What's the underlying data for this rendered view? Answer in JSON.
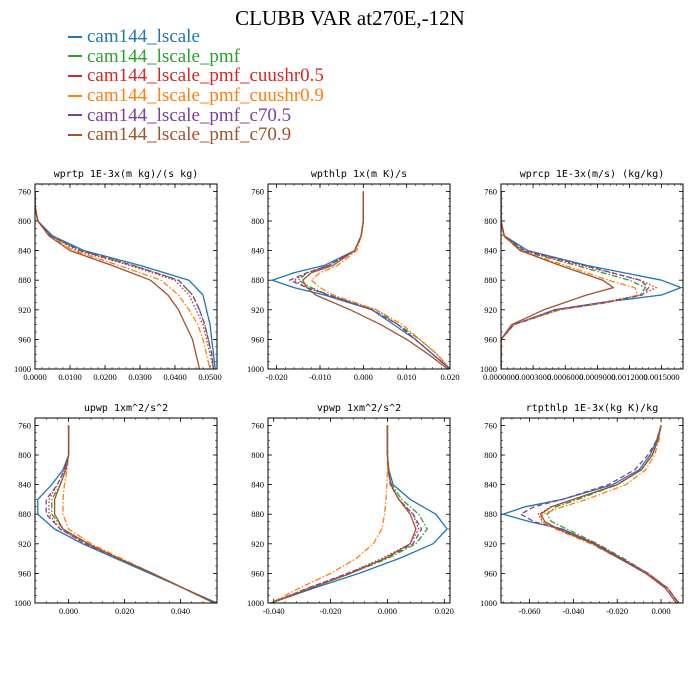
{
  "title": "CLUBB VAR at270E,-12N",
  "legend": [
    {
      "label": "cam144_lscale",
      "color": "#1f77b4"
    },
    {
      "label": "cam144_lscale_pmf",
      "color": "#2ca02c"
    },
    {
      "label": "cam144_lscale_pmf_cuushr0.5",
      "color": "#d62728"
    },
    {
      "label": "cam144_lscale_pmf_cuushr0.9",
      "color": "#ff7f0e"
    },
    {
      "label": "cam144_lscale_pmf_c70.5",
      "color": "#7b3fa0"
    },
    {
      "label": "cam144_lscale_pmf_c70.9",
      "color": "#a0522d"
    }
  ],
  "chart_data": [
    {
      "type": "line",
      "title": "wprtp  1E-3x(m kg)/(s kg)",
      "xlim": [
        0.0,
        0.052
      ],
      "ylim": [
        1000,
        750
      ],
      "yticks": [
        760,
        800,
        840,
        880,
        920,
        960,
        1000
      ],
      "xticks": [
        0.0,
        0.01,
        0.02,
        0.03,
        0.04,
        0.05
      ],
      "xticklabels": [
        "0.0000",
        "0.0100",
        "0.0200",
        "0.0300",
        "0.0400",
        "0.0500"
      ],
      "y": [
        760,
        780,
        800,
        820,
        840,
        860,
        880,
        900,
        920,
        940,
        960,
        980,
        1000
      ],
      "series": [
        {
          "name": "cam144_lscale",
          "style": "solid",
          "values": [
            0.0,
            0.0,
            0.0008,
            0.005,
            0.014,
            0.03,
            0.044,
            0.048,
            0.049,
            0.05,
            0.0505,
            0.051,
            0.0515
          ]
        },
        {
          "name": "cam144_lscale_pmf",
          "style": "dashdot",
          "values": [
            0.0,
            0.0,
            0.0008,
            0.0045,
            0.013,
            0.028,
            0.041,
            0.045,
            0.047,
            0.0485,
            0.0495,
            0.0505,
            0.051
          ]
        },
        {
          "name": "cam144_lscale_pmf_cuushr0.5",
          "style": "dotted",
          "values": [
            0.0,
            0.0,
            0.0008,
            0.0045,
            0.012,
            0.027,
            0.04,
            0.044,
            0.046,
            0.048,
            0.049,
            0.05,
            0.051
          ]
        },
        {
          "name": "cam144_lscale_pmf_cuushr0.9",
          "style": "dashdot",
          "values": [
            0.0,
            0.0,
            0.0008,
            0.004,
            0.011,
            0.024,
            0.036,
            0.041,
            0.044,
            0.0465,
            0.048,
            0.049,
            0.05
          ]
        },
        {
          "name": "cam144_lscale_pmf_c70.5",
          "style": "dashed",
          "values": [
            0.0,
            0.0,
            0.0008,
            0.0045,
            0.013,
            0.028,
            0.041,
            0.045,
            0.047,
            0.0485,
            0.0495,
            0.0505,
            0.051
          ]
        },
        {
          "name": "cam144_lscale_pmf_c70.9",
          "style": "solid",
          "values": [
            0.0,
            0.0,
            0.0008,
            0.004,
            0.01,
            0.022,
            0.033,
            0.038,
            0.041,
            0.043,
            0.045,
            0.046,
            0.047
          ]
        }
      ]
    },
    {
      "type": "line",
      "title": "wpthlp  1x(m K)/s",
      "xlim": [
        -0.022,
        0.02
      ],
      "ylim": [
        1000,
        750
      ],
      "yticks": [
        760,
        800,
        840,
        880,
        920,
        960,
        1000
      ],
      "xticks": [
        -0.02,
        -0.01,
        0.0,
        0.01,
        0.02
      ],
      "xticklabels": [
        "-0.020",
        "-0.010",
        "0.000",
        "0.010",
        "0.020"
      ],
      "y": [
        760,
        780,
        800,
        820,
        840,
        860,
        870,
        880,
        890,
        900,
        920,
        940,
        960,
        980,
        1000
      ],
      "series": [
        {
          "name": "cam144_lscale",
          "style": "solid",
          "values": [
            0.0,
            0.0,
            0.0,
            -0.0005,
            -0.002,
            -0.009,
            -0.016,
            -0.021,
            -0.016,
            -0.009,
            0.002,
            0.007,
            0.012,
            0.016,
            0.02
          ]
        },
        {
          "name": "cam144_lscale_pmf",
          "style": "dashdot",
          "values": [
            0.0,
            0.0,
            0.0,
            -0.0005,
            -0.002,
            -0.008,
            -0.013,
            -0.015,
            -0.012,
            -0.008,
            0.003,
            0.008,
            0.013,
            0.017,
            0.02
          ]
        },
        {
          "name": "cam144_lscale_pmf_cuushr0.5",
          "style": "dotted",
          "values": [
            0.0,
            0.0,
            0.0,
            -0.0005,
            -0.002,
            -0.008,
            -0.013,
            -0.016,
            -0.013,
            -0.008,
            0.002,
            0.008,
            0.012,
            0.016,
            0.02
          ]
        },
        {
          "name": "cam144_lscale_pmf_cuushr0.9",
          "style": "dashdot",
          "values": [
            0.0,
            0.0,
            0.0,
            -0.0005,
            -0.0015,
            -0.006,
            -0.01,
            -0.012,
            -0.01,
            -0.007,
            0.003,
            0.009,
            0.013,
            0.017,
            0.02
          ]
        },
        {
          "name": "cam144_lscale_pmf_c70.5",
          "style": "dashed",
          "values": [
            0.0,
            0.0,
            0.0,
            -0.0005,
            -0.002,
            -0.008,
            -0.013,
            -0.017,
            -0.013,
            -0.008,
            0.002,
            0.008,
            0.012,
            0.016,
            0.02
          ]
        },
        {
          "name": "cam144_lscale_pmf_c70.9",
          "style": "solid",
          "values": [
            0.0,
            0.0,
            0.0,
            -0.0005,
            -0.002,
            -0.007,
            -0.012,
            -0.014,
            -0.013,
            -0.011,
            -0.003,
            0.004,
            0.01,
            0.015,
            0.0195
          ]
        }
      ]
    },
    {
      "type": "line",
      "title": "wprcp  1E-3x(m/s) (kg/kg)",
      "xlim": [
        0.0,
        0.0017
      ],
      "ylim": [
        1000,
        750
      ],
      "yticks": [
        760,
        800,
        840,
        880,
        920,
        960,
        1000
      ],
      "xticks": [
        0.0,
        0.0003,
        0.0006,
        0.0009,
        0.0012,
        0.0015
      ],
      "xticklabels": [
        "0.0000000",
        "0.0003000",
        "0.0006000",
        "0.0009000",
        "0.0012000",
        "0.0015000"
      ],
      "y": [
        760,
        780,
        800,
        820,
        840,
        860,
        880,
        890,
        900,
        910,
        920,
        940,
        960,
        980,
        1000
      ],
      "series": [
        {
          "name": "cam144_lscale",
          "style": "solid",
          "values": [
            0.0,
            0.0,
            0.0,
            3e-05,
            0.00025,
            0.0008,
            0.0015,
            0.00168,
            0.0015,
            0.00095,
            0.0005,
            0.00012,
            0.0,
            0.0,
            0.0
          ]
        },
        {
          "name": "cam144_lscale_pmf",
          "style": "dashdot",
          "values": [
            0.0,
            0.0,
            0.0,
            3e-05,
            0.0002,
            0.0007,
            0.0012,
            0.00135,
            0.0013,
            0.001,
            0.00055,
            0.00012,
            0.0,
            0.0,
            0.0
          ]
        },
        {
          "name": "cam144_lscale_pmf_cuushr0.5",
          "style": "dotted",
          "values": [
            0.0,
            0.0,
            0.0,
            3e-05,
            0.0002,
            0.00075,
            0.0013,
            0.00145,
            0.0013,
            0.00095,
            0.0005,
            0.00012,
            0.0,
            0.0,
            0.0
          ]
        },
        {
          "name": "cam144_lscale_pmf_cuushr0.9",
          "style": "dashdot",
          "values": [
            0.0,
            0.0,
            0.0,
            2e-05,
            0.00018,
            0.0006,
            0.001,
            0.00125,
            0.00128,
            0.001,
            0.00055,
            0.00012,
            0.0,
            0.0,
            0.0
          ]
        },
        {
          "name": "cam144_lscale_pmf_c70.5",
          "style": "dashed",
          "values": [
            0.0,
            0.0,
            0.0,
            3e-05,
            0.00022,
            0.00078,
            0.0013,
            0.00138,
            0.00132,
            0.00098,
            0.00052,
            0.00012,
            0.0,
            0.0,
            0.0
          ]
        },
        {
          "name": "cam144_lscale_pmf_c70.9",
          "style": "solid",
          "values": [
            0.0,
            0.0,
            0.0,
            3e-05,
            0.00018,
            0.00055,
            0.00095,
            0.00105,
            0.0008,
            0.0006,
            0.0004,
            0.0001,
            0.0,
            0.0,
            0.0
          ]
        }
      ]
    },
    {
      "type": "line",
      "title": "upwp  1xm^2/s^2",
      "xlim": [
        -0.012,
        0.053
      ],
      "ylim": [
        1000,
        750
      ],
      "yticks": [
        760,
        800,
        840,
        880,
        920,
        960,
        1000
      ],
      "xticks": [
        0.0,
        0.02,
        0.04
      ],
      "xticklabels": [
        "0.000",
        "0.020",
        "0.040"
      ],
      "y": [
        760,
        780,
        800,
        820,
        840,
        860,
        880,
        900,
        920,
        940,
        960,
        980,
        1000
      ],
      "series": [
        {
          "name": "cam144_lscale",
          "style": "solid",
          "values": [
            0.0,
            0.0,
            0.0,
            -0.002,
            -0.006,
            -0.011,
            -0.011,
            -0.005,
            0.005,
            0.017,
            0.029,
            0.041,
            0.053
          ]
        },
        {
          "name": "cam144_lscale_pmf",
          "style": "dashdot",
          "values": [
            0.0,
            0.0,
            0.0,
            -0.001,
            -0.003,
            -0.006,
            -0.006,
            -0.002,
            0.007,
            0.018,
            0.03,
            0.041,
            0.052
          ]
        },
        {
          "name": "cam144_lscale_pmf_cuushr0.5",
          "style": "dotted",
          "values": [
            0.0,
            0.0,
            0.0,
            -0.0015,
            -0.004,
            -0.007,
            -0.007,
            -0.003,
            0.006,
            0.018,
            0.03,
            0.041,
            0.052
          ]
        },
        {
          "name": "cam144_lscale_pmf_cuushr0.9",
          "style": "dashdot",
          "values": [
            0.0,
            0.0,
            0.0,
            -0.0005,
            -0.0015,
            -0.002,
            -0.002,
            0.0,
            0.008,
            0.019,
            0.03,
            0.041,
            0.052
          ]
        },
        {
          "name": "cam144_lscale_pmf_c70.5",
          "style": "dashed",
          "values": [
            0.0,
            0.0,
            0.0,
            -0.0015,
            -0.004,
            -0.008,
            -0.008,
            -0.003,
            0.006,
            0.018,
            0.03,
            0.041,
            0.052
          ]
        },
        {
          "name": "cam144_lscale_pmf_c70.9",
          "style": "solid",
          "values": [
            0.0,
            0.0,
            0.0,
            -0.001,
            -0.003,
            -0.005,
            -0.005,
            -0.002,
            0.007,
            0.018,
            0.03,
            0.041,
            0.052
          ]
        }
      ]
    },
    {
      "type": "line",
      "title": "vpwp  1xm^2/s^2",
      "xlim": [
        -0.042,
        0.022
      ],
      "ylim": [
        1000,
        750
      ],
      "yticks": [
        760,
        800,
        840,
        880,
        920,
        960,
        1000
      ],
      "xticks": [
        -0.04,
        -0.02,
        0.0,
        0.02
      ],
      "xticklabels": [
        "-0.040",
        "-0.020",
        "0.000",
        "0.020"
      ],
      "y": [
        760,
        780,
        800,
        820,
        840,
        860,
        880,
        900,
        920,
        940,
        960,
        980,
        1000
      ],
      "series": [
        {
          "name": "cam144_lscale",
          "style": "solid",
          "values": [
            0.0,
            0.0,
            0.0,
            0.0005,
            0.002,
            0.008,
            0.017,
            0.021,
            0.016,
            0.004,
            -0.01,
            -0.026,
            -0.041
          ]
        },
        {
          "name": "cam144_lscale_pmf",
          "style": "dashdot",
          "values": [
            0.0,
            0.0,
            0.0,
            0.0003,
            0.0015,
            0.005,
            0.011,
            0.014,
            0.01,
            0.0,
            -0.013,
            -0.027,
            -0.041
          ]
        },
        {
          "name": "cam144_lscale_pmf_cuushr0.5",
          "style": "dotted",
          "values": [
            0.0,
            0.0,
            0.0,
            0.0003,
            0.001,
            0.004,
            0.009,
            0.011,
            0.008,
            -0.002,
            -0.014,
            -0.028,
            -0.041
          ]
        },
        {
          "name": "cam144_lscale_pmf_cuushr0.9",
          "style": "dashdot",
          "values": [
            0.0,
            0.0,
            0.0,
            0.0,
            -0.0002,
            -0.0005,
            -0.001,
            -0.002,
            -0.005,
            -0.011,
            -0.02,
            -0.031,
            -0.041
          ]
        },
        {
          "name": "cam144_lscale_pmf_c70.5",
          "style": "dashed",
          "values": [
            0.0,
            0.0,
            0.0,
            0.0003,
            0.001,
            0.004,
            0.009,
            0.012,
            0.009,
            -0.001,
            -0.014,
            -0.028,
            -0.041
          ]
        },
        {
          "name": "cam144_lscale_pmf_c70.9",
          "style": "solid",
          "values": [
            0.0,
            0.0,
            0.0,
            0.0003,
            0.0012,
            0.004,
            0.008,
            0.01,
            0.008,
            -0.001,
            -0.013,
            -0.027,
            -0.041
          ]
        }
      ]
    },
    {
      "type": "line",
      "title": "rtpthlp  1E-3x(kg K)/kg",
      "xlim": [
        -0.073,
        0.01
      ],
      "ylim": [
        1000,
        750
      ],
      "yticks": [
        760,
        800,
        840,
        880,
        920,
        960,
        1000
      ],
      "xticks": [
        -0.06,
        -0.04,
        -0.02,
        0.0
      ],
      "xticklabels": [
        "-0.060",
        "-0.040",
        "-0.020",
        "0.000"
      ],
      "y": [
        760,
        780,
        800,
        820,
        840,
        860,
        870,
        880,
        890,
        900,
        920,
        940,
        960,
        980,
        1000
      ],
      "series": [
        {
          "name": "cam144_lscale",
          "style": "solid",
          "values": [
            0.0,
            -0.002,
            -0.005,
            -0.01,
            -0.022,
            -0.045,
            -0.062,
            -0.072,
            -0.06,
            -0.045,
            -0.03,
            -0.018,
            -0.006,
            0.003,
            0.008
          ]
        },
        {
          "name": "cam144_lscale_pmf",
          "style": "dashdot",
          "values": [
            0.0,
            -0.0015,
            -0.004,
            -0.009,
            -0.02,
            -0.038,
            -0.048,
            -0.052,
            -0.05,
            -0.043,
            -0.029,
            -0.017,
            -0.006,
            0.003,
            0.008
          ]
        },
        {
          "name": "cam144_lscale_pmf_cuushr0.5",
          "style": "dotted",
          "values": [
            0.0,
            -0.0015,
            -0.004,
            -0.009,
            -0.02,
            -0.04,
            -0.05,
            -0.056,
            -0.054,
            -0.046,
            -0.03,
            -0.018,
            -0.006,
            0.003,
            0.008
          ]
        },
        {
          "name": "cam144_lscale_pmf_cuushr0.9",
          "style": "dashdot",
          "values": [
            0.0,
            -0.001,
            -0.003,
            -0.007,
            -0.016,
            -0.034,
            -0.045,
            -0.054,
            -0.055,
            -0.048,
            -0.032,
            -0.019,
            -0.006,
            0.003,
            0.008
          ]
        },
        {
          "name": "cam144_lscale_pmf_c70.5",
          "style": "dashed",
          "values": [
            0.0,
            -0.002,
            -0.006,
            -0.012,
            -0.024,
            -0.045,
            -0.058,
            -0.064,
            -0.058,
            -0.046,
            -0.03,
            -0.018,
            -0.006,
            0.003,
            0.008
          ]
        },
        {
          "name": "cam144_lscale_pmf_c70.9",
          "style": "solid",
          "values": [
            0.0,
            -0.0015,
            -0.004,
            -0.009,
            -0.02,
            -0.04,
            -0.05,
            -0.055,
            -0.053,
            -0.047,
            -0.031,
            -0.019,
            -0.007,
            0.002,
            0.007
          ]
        }
      ]
    }
  ]
}
